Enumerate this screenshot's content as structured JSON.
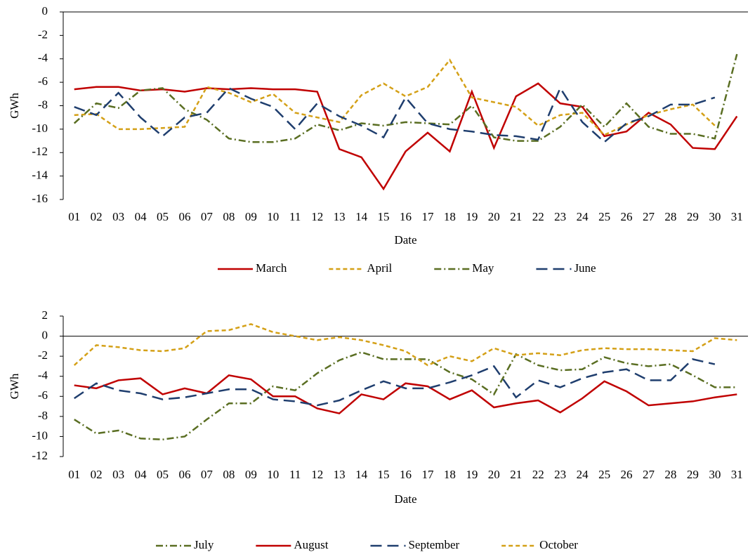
{
  "chart_data": [
    {
      "type": "line",
      "ylabel": "GWh",
      "xlabel": "Date",
      "categories": [
        "01",
        "02",
        "03",
        "04",
        "05",
        "06",
        "07",
        "08",
        "09",
        "10",
        "11",
        "12",
        "13",
        "14",
        "15",
        "16",
        "17",
        "18",
        "19",
        "20",
        "21",
        "22",
        "23",
        "24",
        "25",
        "26",
        "27",
        "28",
        "29",
        "30",
        "31"
      ],
      "ylim": [
        -16,
        0
      ],
      "yticks": [
        0,
        -2,
        -4,
        -6,
        -8,
        -10,
        -12,
        -14,
        -16
      ],
      "series": [
        {
          "name": "March",
          "color": "#c00000",
          "style": "solid",
          "values": [
            -6.6,
            -6.4,
            -6.4,
            -6.7,
            -6.6,
            -6.8,
            -6.5,
            -6.6,
            -6.5,
            -6.6,
            -6.6,
            -6.8,
            -11.7,
            -12.4,
            -15.1,
            -11.9,
            -10.3,
            -11.9,
            -6.8,
            -11.6,
            -7.2,
            -6.1,
            -7.8,
            -8.1,
            -10.6,
            -10.2,
            -8.6,
            -9.6,
            -11.6,
            -11.7,
            -8.9
          ]
        },
        {
          "name": "April",
          "color": "#d4a017",
          "style": "dash",
          "values": [
            -8.8,
            -8.7,
            -10.0,
            -10.0,
            -9.9,
            -9.8,
            -6.4,
            -6.9,
            -7.7,
            -7.0,
            -8.6,
            -9.0,
            -9.4,
            -7.1,
            -6.1,
            -7.2,
            -6.4,
            -4.1,
            -7.3,
            -7.7,
            -8.1,
            -9.7,
            -8.8,
            -8.6,
            -10.5,
            -9.6,
            -8.8,
            -8.3,
            -7.9,
            -9.7,
            null
          ]
        },
        {
          "name": "May",
          "color": "#5a6e22",
          "style": "dashdot",
          "values": [
            -9.5,
            -7.8,
            -8.2,
            -6.7,
            -6.5,
            -8.3,
            -9.2,
            -10.8,
            -11.1,
            -11.1,
            -10.8,
            -9.6,
            -10.1,
            -9.5,
            -9.7,
            -9.4,
            -9.5,
            -9.6,
            -8.0,
            -10.7,
            -11.0,
            -11.0,
            -9.8,
            -7.9,
            -9.8,
            -7.8,
            -9.8,
            -10.4,
            -10.4,
            -10.8,
            -3.6
          ]
        },
        {
          "name": "June",
          "color": "#1f3e6e",
          "style": "longdash",
          "values": [
            -8.1,
            -8.8,
            -6.9,
            -9.0,
            -10.6,
            -9.0,
            -8.6,
            -6.5,
            -7.4,
            -8.1,
            -10.0,
            -7.8,
            -8.9,
            -9.7,
            -10.7,
            -7.3,
            -9.5,
            -10.0,
            -10.2,
            -10.5,
            -10.6,
            -10.9,
            -6.5,
            -9.4,
            -11.1,
            -9.5,
            -8.9,
            -7.9,
            -7.9,
            -7.3,
            null
          ]
        }
      ]
    },
    {
      "type": "line",
      "ylabel": "GWh",
      "xlabel": "Date",
      "categories": [
        "01",
        "02",
        "03",
        "04",
        "05",
        "06",
        "07",
        "08",
        "09",
        "10",
        "11",
        "12",
        "13",
        "14",
        "15",
        "16",
        "17",
        "18",
        "19",
        "20",
        "21",
        "22",
        "23",
        "24",
        "25",
        "26",
        "27",
        "28",
        "29",
        "30",
        "31"
      ],
      "ylim": [
        -12,
        2
      ],
      "yticks": [
        2,
        0,
        -2,
        -4,
        -6,
        -8,
        -10,
        -12
      ],
      "series": [
        {
          "name": "July",
          "color": "#5a6e22",
          "style": "dashdot",
          "values": [
            -8.3,
            -9.7,
            -9.4,
            -10.2,
            -10.3,
            -10.0,
            -8.3,
            -6.7,
            -6.7,
            -5.0,
            -5.4,
            -3.7,
            -2.4,
            -1.6,
            -2.3,
            -2.3,
            -2.3,
            -3.6,
            -4.3,
            -5.8,
            -1.8,
            -2.9,
            -3.4,
            -3.3,
            -2.1,
            -2.7,
            -3.0,
            -2.8,
            -3.9,
            -5.1,
            -5.1
          ]
        },
        {
          "name": "August",
          "color": "#c00000",
          "style": "solid",
          "values": [
            -4.9,
            -5.2,
            -4.4,
            -4.2,
            -5.8,
            -5.2,
            -5.7,
            -3.9,
            -4.3,
            -6.0,
            -6.0,
            -7.2,
            -7.7,
            -5.8,
            -6.3,
            -4.7,
            -5.0,
            -6.3,
            -5.4,
            -7.1,
            -6.7,
            -6.4,
            -7.6,
            -6.2,
            -4.5,
            -5.5,
            -6.9,
            -6.7,
            -6.5,
            -6.1,
            -5.8
          ]
        },
        {
          "name": "September",
          "color": "#1f3e6e",
          "style": "longdash",
          "values": [
            -6.2,
            -4.7,
            -5.4,
            -5.7,
            -6.3,
            -6.1,
            -5.7,
            -5.3,
            -5.3,
            -6.3,
            -6.5,
            -6.9,
            -6.4,
            -5.4,
            -4.5,
            -5.2,
            -5.2,
            -4.6,
            -3.9,
            -3.0,
            -6.1,
            -4.4,
            -5.1,
            -4.2,
            -3.6,
            -3.3,
            -4.4,
            -4.4,
            -2.3,
            -2.8,
            null
          ]
        },
        {
          "name": "October",
          "color": "#d4a017",
          "style": "dash",
          "values": [
            -2.9,
            -0.9,
            -1.1,
            -1.4,
            -1.5,
            -1.2,
            0.5,
            0.6,
            1.2,
            0.4,
            0.0,
            -0.4,
            -0.1,
            -0.4,
            -0.9,
            -1.5,
            -2.9,
            -2.0,
            -2.5,
            -1.2,
            -1.9,
            -1.7,
            -1.9,
            -1.4,
            -1.2,
            -1.3,
            -1.3,
            -1.4,
            -1.5,
            -0.2,
            -0.4
          ]
        }
      ]
    }
  ]
}
